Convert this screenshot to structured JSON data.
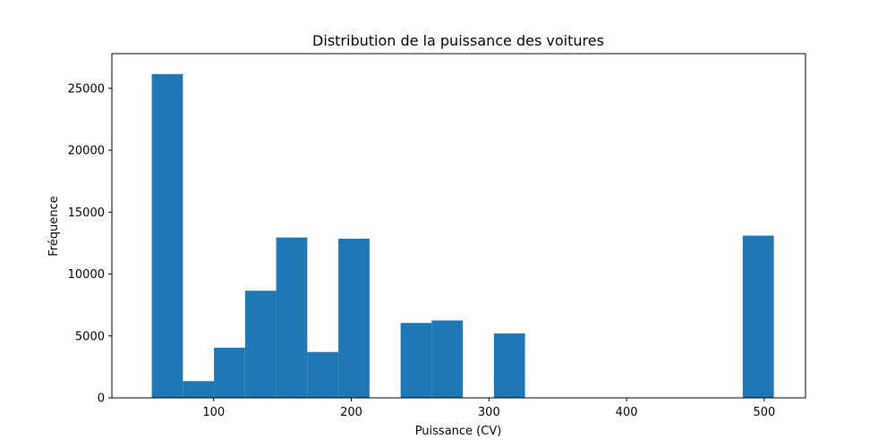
{
  "chart_data": {
    "type": "bar",
    "title": "Distribution de la puissance des voitures",
    "xlabel": "Puissance (CV)",
    "ylabel": "Fréquence",
    "xlim": [
      26,
      530
    ],
    "ylim": [
      0,
      27800
    ],
    "x_ticks": [
      100,
      200,
      300,
      400,
      500
    ],
    "y_ticks": [
      0,
      5000,
      10000,
      15000,
      20000,
      25000
    ],
    "bin_edges": [
      55,
      77.6,
      100.2,
      122.8,
      145.4,
      168,
      190.6,
      213.2,
      235.8,
      258.4,
      281,
      303.6,
      326.2,
      348.8,
      371.4,
      394,
      416.6,
      439.2,
      461.8,
      484.4,
      507
    ],
    "values": [
      26150,
      1350,
      4050,
      8650,
      12950,
      3700,
      12850,
      0,
      6050,
      6250,
      0,
      5200,
      0,
      0,
      0,
      0,
      0,
      0,
      0,
      13100
    ],
    "color": "#1f77b4",
    "grid": false,
    "legend": "none"
  }
}
